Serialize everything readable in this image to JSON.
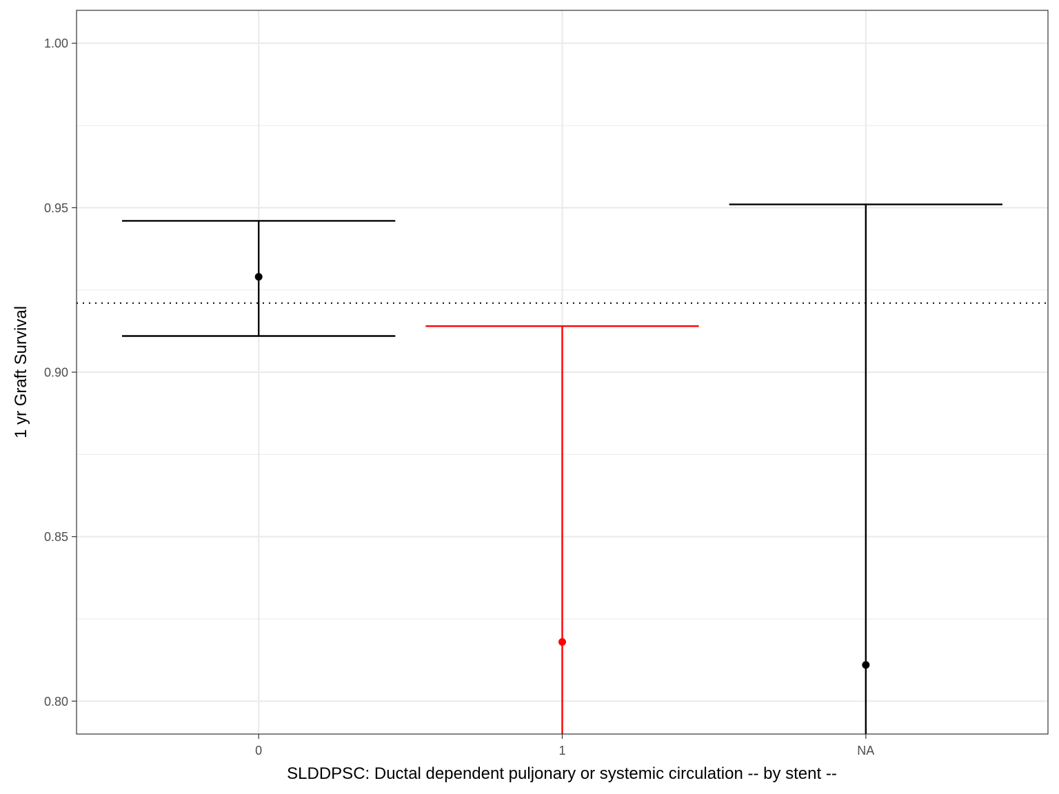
{
  "chart_data": {
    "type": "errorbar",
    "xlabel": "SLDDPSC: Ductal dependent puljonary or systemic circulation -- by stent --",
    "ylabel": "1 yr Graft Survival",
    "categories": [
      "0",
      "1",
      "NA"
    ],
    "points": [
      {
        "category": "0",
        "estimate": 0.929,
        "lower": 0.911,
        "upper": 0.946,
        "color": "#000000"
      },
      {
        "category": "1",
        "estimate": 0.818,
        "lower": 0.79,
        "upper": 0.914,
        "color": "#ff0000"
      },
      {
        "category": "NA",
        "estimate": 0.811,
        "lower": 0.79,
        "upper": 0.951,
        "color": "#000000"
      }
    ],
    "reference_line": {
      "y": 0.921,
      "style": "dotted"
    },
    "ylim": [
      0.79,
      1.01
    ],
    "yticks": [
      "0.80",
      "0.85",
      "0.90",
      "0.95",
      "1.00"
    ],
    "grid": true,
    "legend": "none"
  }
}
